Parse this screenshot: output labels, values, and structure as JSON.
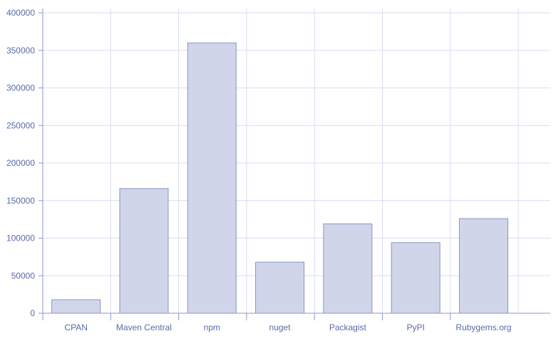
{
  "chart_data": {
    "type": "bar",
    "categories": [
      "CPAN",
      "Maven Central",
      "npm",
      "nuget",
      "Packagist",
      "PyPI",
      "Rubygems.org"
    ],
    "values": [
      18000,
      166000,
      360000,
      68000,
      119000,
      94000,
      126000
    ],
    "ylim": [
      0,
      400000
    ],
    "yticks": [
      0,
      50000,
      100000,
      150000,
      200000,
      250000,
      300000,
      350000,
      400000
    ],
    "grid": true,
    "legend": "none",
    "colors": {
      "bar_fill": "#d0d5ea",
      "bar_stroke": "#8a94c7",
      "grid": "#d9def2",
      "text": "#5a6aa8"
    }
  }
}
